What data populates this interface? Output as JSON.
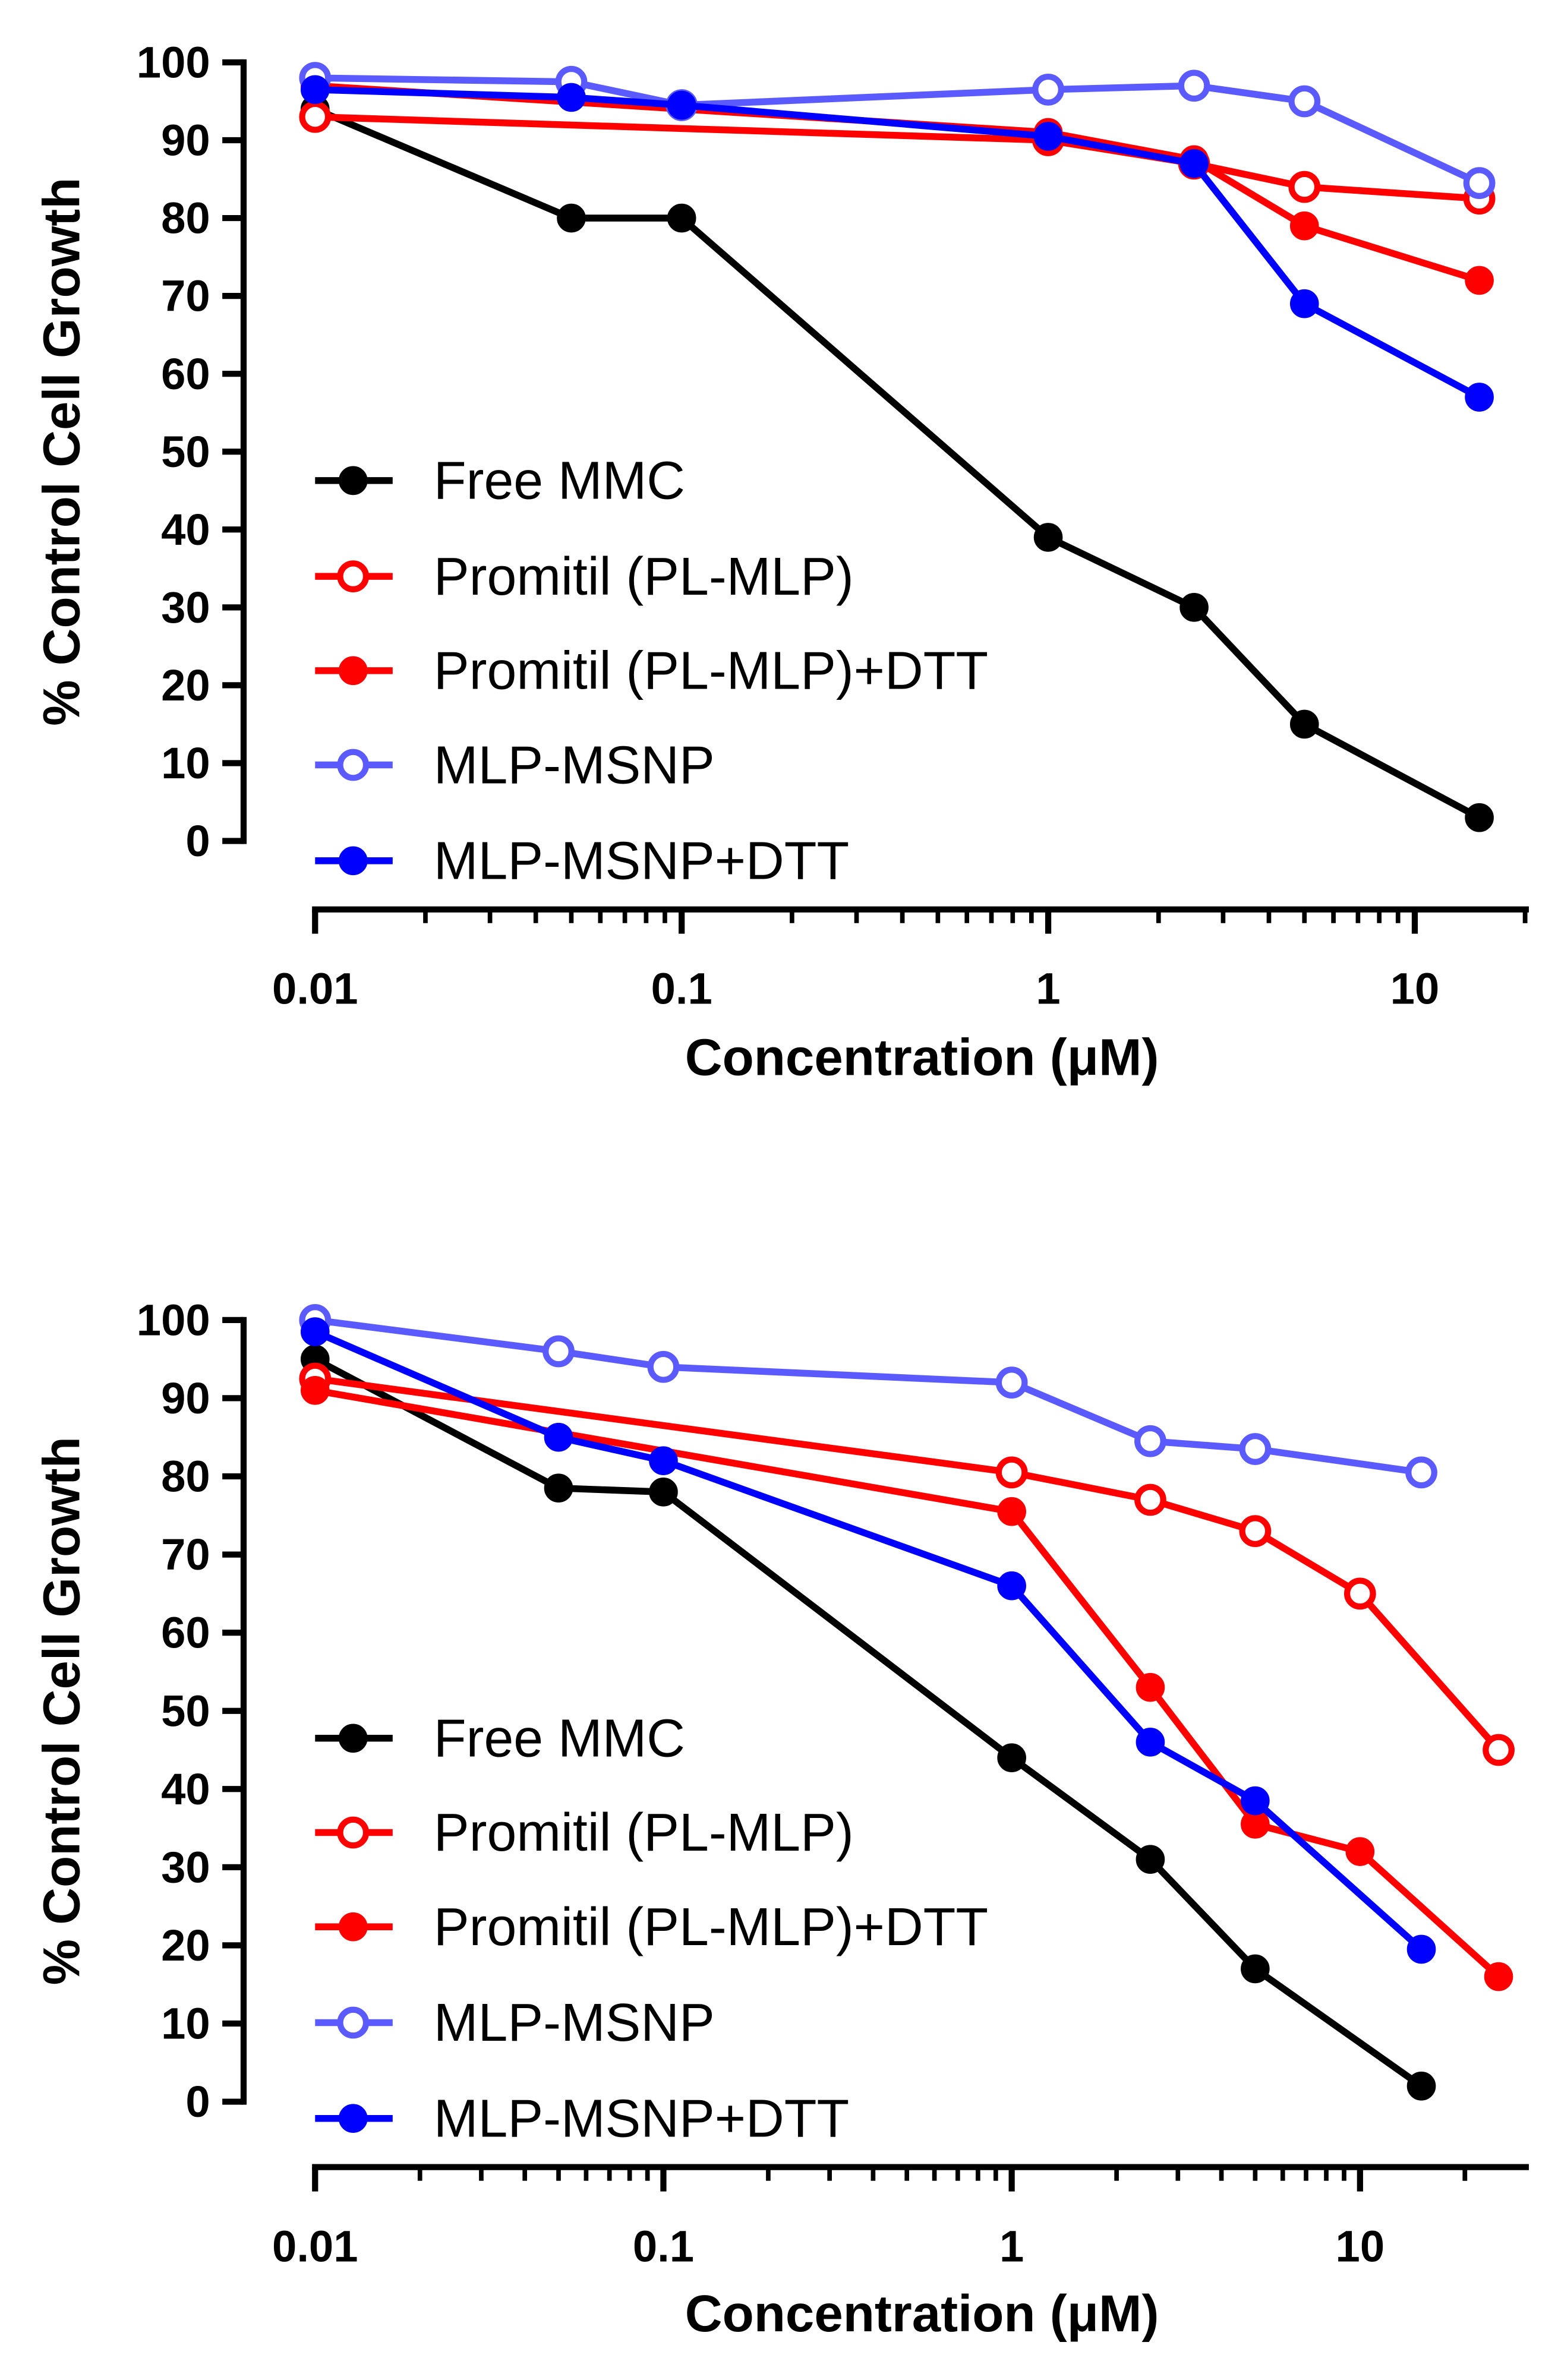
{
  "chart_data": [
    {
      "type": "line",
      "title": "",
      "xlabel": "Concentration (μM)",
      "ylabel": "% Control Cell Growth",
      "xscale": "log",
      "xlim": [
        0.01,
        25
      ],
      "ylim": [
        0,
        100
      ],
      "yticks": [
        "0",
        "10",
        "20",
        "30",
        "40",
        "50",
        "60",
        "70",
        "80",
        "90",
        "100"
      ],
      "xticks": [
        "0.01",
        "0.1",
        "1",
        "10"
      ],
      "legend": "center-left",
      "grid": false,
      "series": [
        {
          "name": "Free MMC",
          "color": "#000000",
          "marker": "filled",
          "x": [
            0.01,
            0.05,
            0.1,
            1,
            2.5,
            5,
            15
          ],
          "y": [
            94,
            80,
            80,
            39,
            30,
            15,
            3
          ]
        },
        {
          "name": "Promitil (PL-MLP)",
          "color": "#ff0000",
          "marker": "open",
          "x": [
            0.01,
            1,
            2.5,
            5,
            15
          ],
          "y": [
            93,
            90,
            87,
            84,
            82.5
          ]
        },
        {
          "name": "Promitil (PL-MLP)+DTT",
          "color": "#ff0000",
          "marker": "filled",
          "x": [
            0.01,
            1,
            2.5,
            5,
            15
          ],
          "y": [
            97,
            91,
            87.5,
            79,
            72
          ]
        },
        {
          "name": "MLP-MSNP",
          "color": "#5a5aff",
          "marker": "open",
          "x": [
            0.01,
            0.05,
            0.1,
            1,
            2.5,
            5,
            15
          ],
          "y": [
            98,
            97.5,
            94.5,
            96.5,
            97,
            95,
            84.5
          ]
        },
        {
          "name": "MLP-MSNP+DTT",
          "color": "#0000ff",
          "marker": "filled",
          "x": [
            0.01,
            0.05,
            0.1,
            1,
            2.5,
            5,
            15
          ],
          "y": [
            96.5,
            95.5,
            94.5,
            90.5,
            87,
            69,
            57
          ]
        }
      ]
    },
    {
      "type": "line",
      "title": "",
      "xlabel": "Concentration (μM)",
      "ylabel": "% Control Cell Growth",
      "xscale": "log",
      "xlim": [
        0.01,
        25
      ],
      "ylim": [
        0,
        100
      ],
      "yticks": [
        "0",
        "10",
        "20",
        "30",
        "40",
        "50",
        "60",
        "70",
        "80",
        "90",
        "100"
      ],
      "xticks": [
        "0.01",
        "0.1",
        "1",
        "10"
      ],
      "legend": "center-left",
      "grid": false,
      "series": [
        {
          "name": "Free MMC",
          "color": "#000000",
          "marker": "filled",
          "x": [
            0.01,
            0.05,
            0.1,
            1,
            2.5,
            5,
            15
          ],
          "y": [
            95,
            78.5,
            78,
            44,
            31,
            17,
            2
          ]
        },
        {
          "name": "Promitil (PL-MLP)",
          "color": "#ff0000",
          "marker": "open",
          "x": [
            0.01,
            1,
            2.5,
            5,
            10,
            25
          ],
          "y": [
            92.5,
            80.5,
            77,
            73,
            65,
            45
          ]
        },
        {
          "name": "Promitil (PL-MLP)+DTT",
          "color": "#ff0000",
          "marker": "filled",
          "x": [
            0.01,
            1,
            2.5,
            5,
            10,
            25
          ],
          "y": [
            91,
            75.5,
            53,
            35.5,
            32,
            16
          ]
        },
        {
          "name": "MLP-MSNP",
          "color": "#5a5aff",
          "marker": "open",
          "x": [
            0.01,
            0.05,
            0.1,
            1,
            2.5,
            5,
            15
          ],
          "y": [
            100,
            96,
            94,
            92,
            84.5,
            83.5,
            80.5
          ]
        },
        {
          "name": "MLP-MSNP+DTT",
          "color": "#0000ff",
          "marker": "filled",
          "x": [
            0.01,
            0.05,
            0.1,
            1,
            2.5,
            5,
            15
          ],
          "y": [
            98.5,
            85,
            82,
            66,
            46,
            38.5,
            19.5
          ]
        }
      ]
    }
  ]
}
